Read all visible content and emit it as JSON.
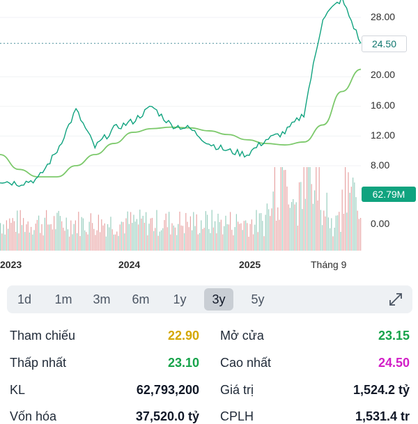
{
  "chart": {
    "y_ticks": [
      "28.00",
      "24.50",
      "20.00",
      "16.00",
      "12.00",
      "8.00",
      "0.00"
    ],
    "x_ticks": [
      "2023",
      "2024",
      "2025",
      "Tháng 9"
    ],
    "price_badge": "24.50",
    "volume_badge": "62.79M",
    "colors": {
      "price_line": "#10a37f",
      "ma_line": "#7cc96b",
      "up": "#8fc9b8",
      "down": "#e59a9a",
      "badge": "#10a37f"
    }
  },
  "chart_data": {
    "type": "line",
    "x": [
      "2022-11",
      "2023-01",
      "2023-03",
      "2023-05",
      "2023-07",
      "2023-09",
      "2023-11",
      "2024-01",
      "2024-03",
      "2024-05",
      "2024-07",
      "2024-09",
      "2024-11",
      "2025-01",
      "2025-03",
      "2025-05",
      "2025-07",
      "2025-08",
      "2025-09",
      "2025-10"
    ],
    "series": [
      {
        "values": [
          6.0,
          5.6,
          6.2,
          10.0,
          15.5,
          10.5,
          13.0,
          14.0,
          16.0,
          13.5,
          13.0,
          11.0,
          10.0,
          9.5,
          11.5,
          12.5,
          15.0,
          28.0,
          30.5,
          24.5
        ]
      },
      {
        "values": [
          9.5,
          7.5,
          6.5,
          6.5,
          8.0,
          9.5,
          11.0,
          12.5,
          13.0,
          13.2,
          13.1,
          12.7,
          12.2,
          11.5,
          11.0,
          10.8,
          11.2,
          13.5,
          18.0,
          21.0
        ]
      }
    ],
    "ylim": [
      0,
      30
    ]
  },
  "ranges": [
    "1d",
    "1m",
    "3m",
    "6m",
    "1y",
    "3y",
    "5y"
  ],
  "active_range": "3y",
  "stats": {
    "tham_chieu_label": "Tham chiếu",
    "tham_chieu_value": "22.90",
    "mo_cua_label": "Mở cửa",
    "mo_cua_value": "23.15",
    "thap_nhat_label": "Thấp nhất",
    "thap_nhat_value": "23.10",
    "cao_nhat_label": "Cao nhất",
    "cao_nhat_value": "24.50",
    "kl_label": "KL",
    "kl_value": "62,793,200",
    "gia_tri_label": "Giá trị",
    "gia_tri_value": "1,524.2 tỷ",
    "von_hoa_label": "Vốn hóa",
    "von_hoa_value": "37,520.0 tỷ",
    "cplh_label": "CPLH",
    "cplh_value": "1,531.4 tr"
  },
  "stat_colors": {
    "yellow": "#d4a800",
    "green": "#16a34a",
    "magenta": "#d21fc7",
    "dark": "#111827"
  }
}
